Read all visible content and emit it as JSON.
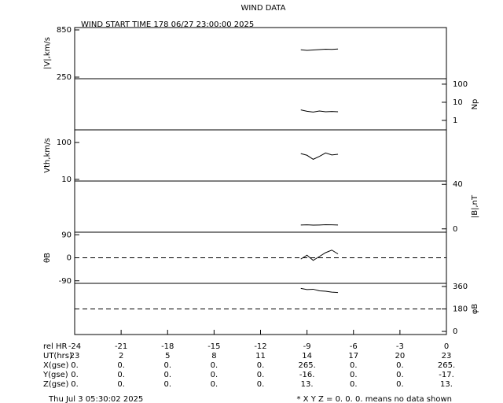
{
  "title": "WIND DATA",
  "subtitle": "WIND START TIME 178 06/27 23:00:00 2025",
  "chart_data": [
    {
      "type": "line",
      "ylabel": "|V|,km/s",
      "axis_side": "left",
      "log": false,
      "xlim": [
        -24,
        0
      ],
      "x": [
        -9.4,
        -9.0,
        -8.6,
        -8.2,
        -7.8,
        -7.4,
        -7.0
      ],
      "series": [
        {
          "color": "#000000",
          "values": [
            598,
            590,
            595,
            600,
            605,
            602,
            608
          ]
        }
      ],
      "ylim": [
        230,
        880
      ],
      "yticks": [
        250,
        850
      ]
    },
    {
      "type": "line",
      "ylabel": "Np",
      "axis_side": "right",
      "log": true,
      "xlim": [
        -24,
        0
      ],
      "x": [
        -9.4,
        -9.0,
        -8.6,
        -8.2,
        -7.8,
        -7.4,
        -7.0
      ],
      "series": [
        {
          "color": "#000000",
          "values": [
            3.8,
            3.2,
            2.9,
            3.3,
            3.0,
            3.1,
            3.0
          ]
        }
      ],
      "ylim": [
        0.3,
        200
      ],
      "yticks": [
        1,
        10,
        100
      ]
    },
    {
      "type": "line",
      "ylabel": "Vth,km/s",
      "axis_side": "left",
      "log": true,
      "xlim": [
        -24,
        0
      ],
      "x": [
        -9.4,
        -9.0,
        -8.6,
        -8.2,
        -7.8,
        -7.4,
        -7.0
      ],
      "series": [
        {
          "color": "#000000",
          "values": [
            50,
            45,
            35,
            42,
            52,
            46,
            48
          ]
        }
      ],
      "ylim": [
        9,
        220
      ],
      "yticks": [
        10,
        100
      ]
    },
    {
      "type": "line",
      "ylabel": "|B|,nT",
      "axis_side": "right",
      "log": false,
      "xlim": [
        -24,
        0
      ],
      "x": [
        -9.4,
        -9.0,
        -8.6,
        -8.2,
        -7.8,
        -7.4,
        -7.0
      ],
      "series": [
        {
          "color": "#000000",
          "values": [
            3.5,
            3.6,
            3.4,
            3.5,
            3.7,
            3.6,
            3.5
          ]
        }
      ],
      "ylim": [
        -3,
        43
      ],
      "yticks": [
        0,
        40
      ]
    },
    {
      "type": "line",
      "ylabel": "θB",
      "axis_side": "left",
      "log": false,
      "hline": 0,
      "xlim": [
        -24,
        0
      ],
      "x": [
        -9.4,
        -9.0,
        -8.6,
        -8.2,
        -7.8,
        -7.4,
        -7.0
      ],
      "series": [
        {
          "color": "#000000",
          "values": [
            -5,
            10,
            -10,
            5,
            20,
            30,
            15
          ]
        }
      ],
      "ylim": [
        -100,
        100
      ],
      "yticks": [
        -90,
        0,
        90
      ]
    },
    {
      "type": "line",
      "ylabel": "φB",
      "axis_side": "right",
      "log": false,
      "hline": 180,
      "xlim": [
        -24,
        0
      ],
      "x": [
        -9.4,
        -9.0,
        -8.6,
        -8.2,
        -7.8,
        -7.4,
        -7.0
      ],
      "series": [
        {
          "color": "#000000",
          "values": [
            345,
            335,
            338,
            325,
            322,
            315,
            312
          ]
        }
      ],
      "ylim": [
        -25,
        385
      ],
      "yticks": [
        0,
        180,
        360
      ],
      "xlabel": "rel HR",
      "xticks": [
        -24,
        -21,
        -18,
        -15,
        -12,
        -9,
        -6,
        -3,
        0
      ]
    }
  ],
  "table": {
    "rows": [
      {
        "label": "UT(hrs)",
        "cells": [
          23,
          2,
          5,
          8,
          11,
          14,
          17,
          20,
          23
        ]
      },
      {
        "label": "X(gse)",
        "cells": [
          "0.",
          "0.",
          "0.",
          "0.",
          "0.",
          "265.",
          "0.",
          "0.",
          "265."
        ]
      },
      {
        "label": "Y(gse)",
        "cells": [
          "0.",
          "0.",
          "0.",
          "0.",
          "0.",
          "-16.",
          "0.",
          "0.",
          "-17."
        ]
      },
      {
        "label": "Z(gse)",
        "cells": [
          "0.",
          "0.",
          "0.",
          "0.",
          "0.",
          "13.",
          "0.",
          "0.",
          "13."
        ]
      }
    ]
  },
  "footer": {
    "date": "Thu Jul  3 05:30:02 2025",
    "note": "* X Y Z = 0. 0. 0. means no data shown"
  }
}
